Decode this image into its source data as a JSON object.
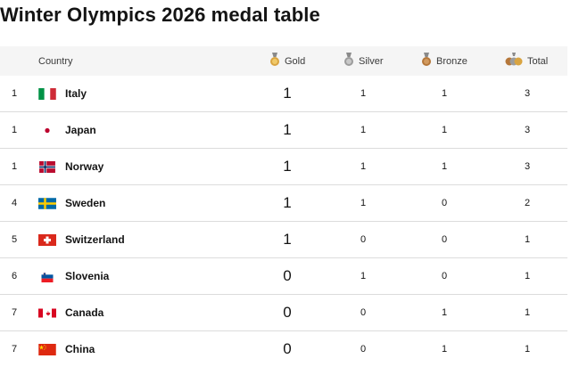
{
  "page": {
    "title": "Winter Olympics 2026 medal table"
  },
  "header": {
    "country": "Country",
    "gold": "Gold",
    "silver": "Silver",
    "bronze": "Bronze",
    "total": "Total"
  },
  "colors": {
    "gold": "#d9a441",
    "silver": "#9c9c9c",
    "bronze": "#b5773a",
    "header_bg": "#f5f5f5",
    "divider": "#dcdcdc"
  },
  "rows": [
    {
      "rank": "1",
      "country": "Italy",
      "flag": "flag-italy-icon",
      "gold": "1",
      "silver": "1",
      "bronze": "1",
      "total": "3"
    },
    {
      "rank": "1",
      "country": "Japan",
      "flag": "flag-japan-icon",
      "gold": "1",
      "silver": "1",
      "bronze": "1",
      "total": "3"
    },
    {
      "rank": "1",
      "country": "Norway",
      "flag": "flag-norway-icon",
      "gold": "1",
      "silver": "1",
      "bronze": "1",
      "total": "3"
    },
    {
      "rank": "4",
      "country": "Sweden",
      "flag": "flag-sweden-icon",
      "gold": "1",
      "silver": "1",
      "bronze": "0",
      "total": "2"
    },
    {
      "rank": "5",
      "country": "Switzerland",
      "flag": "flag-switzerland-icon",
      "gold": "1",
      "silver": "0",
      "bronze": "0",
      "total": "1"
    },
    {
      "rank": "6",
      "country": "Slovenia",
      "flag": "flag-slovenia-icon",
      "gold": "0",
      "silver": "1",
      "bronze": "0",
      "total": "1"
    },
    {
      "rank": "7",
      "country": "Canada",
      "flag": "flag-canada-icon",
      "gold": "0",
      "silver": "0",
      "bronze": "1",
      "total": "1"
    },
    {
      "rank": "7",
      "country": "China",
      "flag": "flag-china-icon",
      "gold": "0",
      "silver": "0",
      "bronze": "1",
      "total": "1"
    }
  ]
}
